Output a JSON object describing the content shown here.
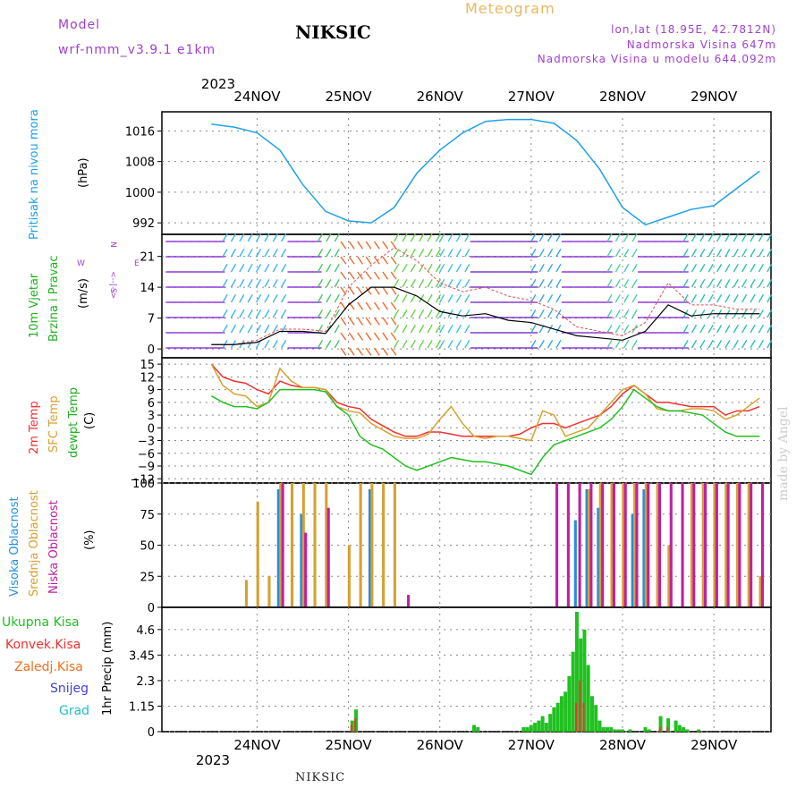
{
  "header": {
    "model_label": "Model",
    "model_name": "wrf-nmm_v3.9.1 e1km",
    "station": "NIKSIC",
    "meteogram": "Meteogram",
    "location_line1": "lon,lat (18.95E, 42.7812N)",
    "location_line2": "Nadmorska Visina 647m",
    "location_line3": "Nadmorska Visina u modelu 644.092m"
  },
  "footer": {
    "station": "NIKSIC",
    "watermark": "made by Angel"
  },
  "axis": {
    "year": "2023",
    "days": [
      "24NOV",
      "25NOV",
      "26NOV",
      "27NOV",
      "28NOV",
      "29NOV"
    ]
  },
  "panel_labels": {
    "pressure_title": "Pritisak na nivou mora",
    "pressure_unit": "(hPa)",
    "wind_title1": "10m Vjetar",
    "wind_title2": "Brzina i Pravac",
    "wind_unit": "(m/s)",
    "temp_title1": "2m Temp",
    "temp_title2": "SFC Temp",
    "temp_title3": "dewpt Temp",
    "temp_unit": "(C)",
    "cloud_title1": "Visoka Oblacnost",
    "cloud_title2": "Srednja Oblacnost",
    "cloud_title3": "Niska Oblacnost",
    "cloud_unit": "(%)",
    "precip_title": "1hr Precip (mm)",
    "legend_total": "Ukupna Kisa",
    "legend_conv": "Konvek.Kisa",
    "legend_frz": "Zaledj.Kisa",
    "legend_snow": "Snijeg",
    "legend_hail": "Grad"
  },
  "colors": {
    "pressure": "#1ea0e8",
    "wind_title": "#20b020",
    "t2m": "#f03030",
    "tsfc": "#d8a030",
    "dew": "#20c020",
    "cloud_high": "#2090e0",
    "cloud_mid": "#d8a030",
    "cloud_low": "#c020a0",
    "precip_total": "#20c020",
    "precip_conv": "#f03030",
    "precip_frz": "#f07020",
    "precip_snow": "#4040e0",
    "precip_hail": "#20c0c0"
  },
  "chart_data": [
    {
      "type": "line",
      "title": "Pritisak na nivou mora",
      "ylabel": "(hPa)",
      "x_hours": [
        0,
        6,
        12,
        18,
        24,
        30,
        36,
        42,
        48,
        54,
        60,
        66,
        72,
        78,
        84,
        90,
        96,
        102,
        108,
        114,
        120,
        126,
        132,
        138,
        144
      ],
      "values": [
        1017.8,
        1017,
        1015.5,
        1011,
        1002,
        995,
        992.5,
        992,
        996,
        1005,
        1011,
        1015.5,
        1018.5,
        1019,
        1019,
        1018,
        1013.5,
        1006,
        996,
        991.5,
        993.5,
        995.5,
        996.5,
        1001,
        1005.5
      ],
      "yticks": [
        992,
        1000,
        1008,
        1016
      ],
      "ylim": [
        989,
        1021
      ]
    },
    {
      "type": "line",
      "title": "10m Vjetar Brzina i Pravac",
      "ylabel": "(m/s)",
      "yticks": [
        0,
        7,
        14,
        21
      ],
      "ylim": [
        -2,
        26
      ],
      "x_hours": [
        0,
        6,
        12,
        18,
        24,
        30,
        36,
        42,
        48,
        54,
        60,
        66,
        72,
        78,
        84,
        90,
        96,
        102,
        108,
        114,
        120,
        126,
        132,
        138,
        144
      ],
      "series": [
        {
          "values": [
            1,
            1,
            1.5,
            4,
            4,
            3.5,
            10,
            14,
            14,
            12,
            8.5,
            7.5,
            8,
            6.5,
            6,
            4.5,
            3,
            2.5,
            2,
            4,
            10,
            7.5,
            8,
            8,
            8
          ]
        },
        {
          "values": [
            1,
            1,
            2,
            4.5,
            4.5,
            4,
            14,
            19,
            23,
            20,
            15,
            13,
            14,
            12,
            11,
            9,
            5,
            4,
            3,
            6,
            15,
            10,
            10,
            9,
            9
          ]
        }
      ]
    },
    {
      "type": "line",
      "title": "Temperature",
      "ylabel": "(C)",
      "yticks": [
        -12,
        -9,
        -6,
        -3,
        0,
        3,
        6,
        9,
        12,
        15
      ],
      "ylim": [
        -13,
        16.5
      ],
      "x_hours": [
        0,
        3,
        6,
        9,
        12,
        15,
        18,
        21,
        24,
        27,
        30,
        33,
        36,
        39,
        42,
        45,
        48,
        51,
        54,
        57,
        60,
        63,
        66,
        69,
        72,
        75,
        78,
        81,
        84,
        87,
        90,
        93,
        96,
        99,
        102,
        105,
        108,
        111,
        114,
        117,
        120,
        123,
        126,
        129,
        132,
        135,
        138,
        141,
        144
      ],
      "series": [
        {
          "name": "2m Temp",
          "values": [
            15,
            12,
            11,
            10.5,
            9,
            8,
            11,
            10,
            9.5,
            9.5,
            9,
            6,
            5,
            4.5,
            2,
            0.5,
            -1,
            -2,
            -2,
            -1,
            -1,
            -1.5,
            -2,
            -2,
            -2,
            -2,
            -2,
            -1.5,
            0,
            1,
            1,
            0,
            1,
            2,
            3,
            5,
            8,
            10,
            8,
            6,
            6,
            5.5,
            5,
            5,
            5,
            3,
            4,
            4,
            5
          ]
        },
        {
          "name": "SFC Temp",
          "values": [
            15,
            10,
            8,
            7.5,
            5,
            6,
            14,
            11,
            9.5,
            9.5,
            9,
            5,
            4,
            3.5,
            1,
            -0.5,
            -2,
            -2.5,
            -2.5,
            -1.5,
            2,
            5,
            1,
            -2,
            -2.5,
            -2,
            -2,
            -2.5,
            -3,
            4,
            3,
            -2,
            -1,
            0,
            3,
            6,
            9,
            10,
            8,
            4.5,
            4,
            4,
            4.5,
            4.5,
            4,
            2,
            3,
            5,
            7
          ]
        },
        {
          "name": "dewpt Temp",
          "values": [
            7.5,
            6,
            5,
            5,
            4.5,
            6,
            9,
            9,
            9,
            9,
            8.5,
            5,
            3,
            -2,
            -4,
            -5,
            -7,
            -9,
            -10,
            -9,
            -8,
            -7,
            -7.5,
            -8,
            -8,
            -8.5,
            -9,
            -10,
            -11,
            -7,
            -4,
            -3,
            -2,
            -1,
            0,
            2,
            5,
            9,
            7,
            5,
            4,
            4,
            3.5,
            3,
            1,
            -1,
            -2,
            -2,
            -2
          ]
        }
      ]
    },
    {
      "type": "bar",
      "title": "Oblacnost",
      "ylabel": "(%)",
      "yticks": [
        0,
        25,
        50,
        75,
        100
      ],
      "ylim": [
        0,
        100
      ],
      "x_hours": [
        0,
        3,
        6,
        9,
        12,
        15,
        18,
        21,
        24,
        27,
        30,
        33,
        36,
        39,
        42,
        45,
        48,
        51,
        54,
        57,
        60,
        63,
        66,
        69,
        72,
        75,
        78,
        81,
        84,
        87,
        90,
        93,
        96,
        99,
        102,
        105,
        108,
        111,
        114,
        117,
        120,
        123,
        126,
        129,
        132,
        135,
        138,
        141,
        144
      ],
      "series": [
        {
          "name": "Visoka Oblacnost",
          "values": [
            0,
            0,
            0,
            0,
            0,
            0,
            95,
            0,
            75,
            0,
            0,
            0,
            0,
            0,
            95,
            0,
            0,
            0,
            0,
            0,
            0,
            0,
            0,
            0,
            0,
            0,
            0,
            0,
            0,
            0,
            0,
            0,
            70,
            95,
            80,
            0,
            0,
            75,
            95,
            0,
            0,
            0,
            0,
            0,
            0,
            0,
            0,
            0,
            0
          ]
        },
        {
          "name": "Srednja Oblacnost",
          "values": [
            0,
            0,
            0,
            22,
            85,
            25,
            100,
            100,
            100,
            100,
            100,
            0,
            50,
            100,
            100,
            100,
            100,
            0,
            0,
            0,
            0,
            0,
            0,
            0,
            0,
            0,
            0,
            0,
            0,
            0,
            0,
            0,
            0,
            95,
            100,
            100,
            100,
            100,
            100,
            100,
            50,
            0,
            100,
            100,
            100,
            100,
            100,
            100,
            25
          ]
        },
        {
          "name": "Niska Oblacnost",
          "values": [
            0,
            0,
            0,
            0,
            0,
            0,
            100,
            0,
            60,
            0,
            80,
            0,
            0,
            0,
            0,
            0,
            0,
            10,
            0,
            0,
            0,
            0,
            0,
            0,
            0,
            0,
            0,
            0,
            0,
            0,
            100,
            100,
            100,
            100,
            100,
            100,
            100,
            100,
            100,
            100,
            100,
            100,
            100,
            100,
            100,
            100,
            100,
            100,
            100
          ]
        }
      ]
    },
    {
      "type": "bar",
      "title": "1hr Precip (mm)",
      "ylabel": "1hr Precip (mm)",
      "yticks": [
        0,
        1.15,
        2.3,
        3.45,
        4.6
      ],
      "ylim": [
        0,
        5.6
      ],
      "x_hours": [
        37,
        38,
        69,
        70,
        82,
        83,
        84,
        85,
        86,
        87,
        88,
        89,
        90,
        91,
        92,
        93,
        94,
        95,
        96,
        97,
        98,
        99,
        100,
        101,
        102,
        103,
        104,
        105,
        106,
        107,
        108,
        110,
        114,
        115,
        118,
        120,
        122,
        123,
        124,
        125,
        128
      ],
      "series": [
        {
          "name": "Ukupna Kisa",
          "values": [
            0.5,
            1,
            0.3,
            0.2,
            0.2,
            0.2,
            0.3,
            0.4,
            0.5,
            0.7,
            0.4,
            0.8,
            1.1,
            1.3,
            1.6,
            1.8,
            2.5,
            3.6,
            5.4,
            4.2,
            4.6,
            3.0,
            1.6,
            1.2,
            0.5,
            0.2,
            0.2,
            0.2,
            0.1,
            0.1,
            0.1,
            0.1,
            0.2,
            0.1,
            0.7,
            0.6,
            0.5,
            0.3,
            0.2,
            0.1,
            0.1
          ]
        },
        {
          "name": "Konvek.Kisa",
          "values": [
            0.3,
            0.6,
            0,
            0,
            0,
            0,
            0,
            0,
            0,
            0,
            0,
            0,
            0,
            0,
            0,
            0,
            0,
            0,
            1.3,
            2.3,
            1.3,
            0,
            0,
            0,
            0,
            0,
            0,
            0,
            0,
            0,
            0,
            0,
            0,
            0,
            0.2,
            0.2,
            0,
            0,
            0,
            0,
            0
          ]
        }
      ]
    }
  ]
}
